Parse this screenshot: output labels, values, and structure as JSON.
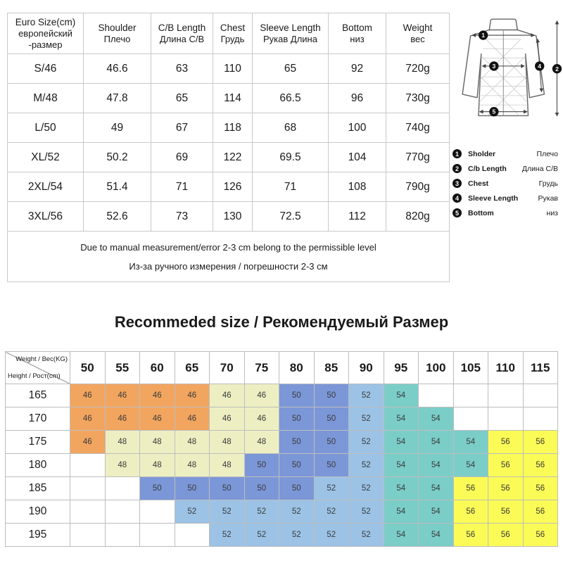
{
  "size_table": {
    "headers": [
      {
        "en": "Euro Size(cm)",
        "ru": "европейский\n-размер"
      },
      {
        "en": "Shoulder",
        "ru": "Плечо"
      },
      {
        "en": "C/B Length",
        "ru": "Длина C/B"
      },
      {
        "en": "Chest",
        "ru": "Грудь"
      },
      {
        "en": "Sleeve Length",
        "ru": "Рукав Длина"
      },
      {
        "en": "Bottom",
        "ru": "низ"
      },
      {
        "en": "Weight",
        "ru": "вес"
      }
    ],
    "rows": [
      [
        "S/46",
        "46.6",
        "63",
        "110",
        "65",
        "92",
        "720g"
      ],
      [
        "M/48",
        "47.8",
        "65",
        "114",
        "66.5",
        "96",
        "730g"
      ],
      [
        "L/50",
        "49",
        "67",
        "118",
        "68",
        "100",
        "740g"
      ],
      [
        "XL/52",
        "50.2",
        "69",
        "122",
        "69.5",
        "104",
        "770g"
      ],
      [
        "2XL/54",
        "51.4",
        "71",
        "126",
        "71",
        "108",
        "790g"
      ],
      [
        "3XL/56",
        "52.6",
        "73",
        "130",
        "72.5",
        "112",
        "820g"
      ]
    ],
    "note_en": "Due to manual measurement/error 2-3 cm belong to the permissible level",
    "note_ru": "Из-за ручного измерения / погрешности 2-3 см"
  },
  "legend": {
    "items": [
      {
        "num": "1",
        "en": "Sholder",
        "ru": "Плечо"
      },
      {
        "num": "2",
        "en": "C/b Length",
        "ru": "Длина C/B"
      },
      {
        "num": "3",
        "en": "Chest",
        "ru": "Грудь"
      },
      {
        "num": "4",
        "en": "Sleeve Length",
        "ru": "Рукав"
      },
      {
        "num": "5",
        "en": "Bottom",
        "ru": "низ"
      }
    ]
  },
  "heading": "Recommeded size / Рекомендуемый Размер",
  "matrix": {
    "corner_top": "Weight / Вес(KG)",
    "corner_bottom": "Height / Рост(cm)",
    "light_46_from_weight": 70,
    "colors": {
      "orange": "#F2A55F",
      "cream": "#EDEFC3",
      "blue": "#7C97D8",
      "lightblue": "#9CC3E6",
      "teal": "#7BCDC8",
      "yellow": "#FBFB57"
    }
  },
  "chart_data": [
    {
      "type": "table",
      "title": "Jacket measurements by Euro size (cm)",
      "columns": [
        "Euro Size(cm) европейский -размер",
        "Shoulder Плечо",
        "C/B Length Длина C/B",
        "Chest Грудь",
        "Sleeve Length Рукав Длина",
        "Bottom низ",
        "Weight вес"
      ],
      "rows": [
        [
          "S/46",
          46.6,
          63,
          110,
          65,
          92,
          "720g"
        ],
        [
          "M/48",
          47.8,
          65,
          114,
          66.5,
          96,
          "730g"
        ],
        [
          "L/50",
          49,
          67,
          118,
          68,
          100,
          "740g"
        ],
        [
          "XL/52",
          50.2,
          69,
          122,
          69.5,
          104,
          "770g"
        ],
        [
          "2XL/54",
          51.4,
          71,
          126,
          71,
          108,
          "790g"
        ],
        [
          "3XL/56",
          52.6,
          73,
          130,
          72.5,
          112,
          "820g"
        ]
      ],
      "note": "Due to manual measurement/error 2-3 cm belong to the permissible level / Из-за ручного измерения / погрешности 2-3 см"
    },
    {
      "type": "heatmap",
      "title": "Recommeded size / Рекомендуемый Размер",
      "xlabel": "Weight / Вес(KG)",
      "ylabel": "Height / Рост(cm)",
      "x": [
        50,
        55,
        60,
        65,
        70,
        75,
        80,
        85,
        90,
        95,
        100,
        105,
        110,
        115
      ],
      "y": [
        165,
        170,
        175,
        180,
        185,
        190,
        195
      ],
      "values": [
        [
          46,
          46,
          46,
          46,
          46,
          46,
          50,
          50,
          52,
          54,
          null,
          null,
          null,
          null
        ],
        [
          46,
          46,
          46,
          46,
          46,
          46,
          50,
          50,
          52,
          54,
          54,
          null,
          null,
          null
        ],
        [
          46,
          48,
          48,
          48,
          48,
          48,
          50,
          50,
          52,
          54,
          54,
          54,
          56,
          56
        ],
        [
          null,
          48,
          48,
          48,
          48,
          50,
          50,
          50,
          52,
          54,
          54,
          54,
          56,
          56
        ],
        [
          null,
          null,
          50,
          50,
          50,
          50,
          50,
          52,
          52,
          54,
          54,
          56,
          56,
          56
        ],
        [
          null,
          null,
          null,
          52,
          52,
          52,
          52,
          52,
          52,
          54,
          54,
          56,
          56,
          56
        ],
        [
          null,
          null,
          null,
          null,
          52,
          52,
          52,
          52,
          52,
          54,
          54,
          56,
          56,
          56
        ]
      ]
    }
  ]
}
